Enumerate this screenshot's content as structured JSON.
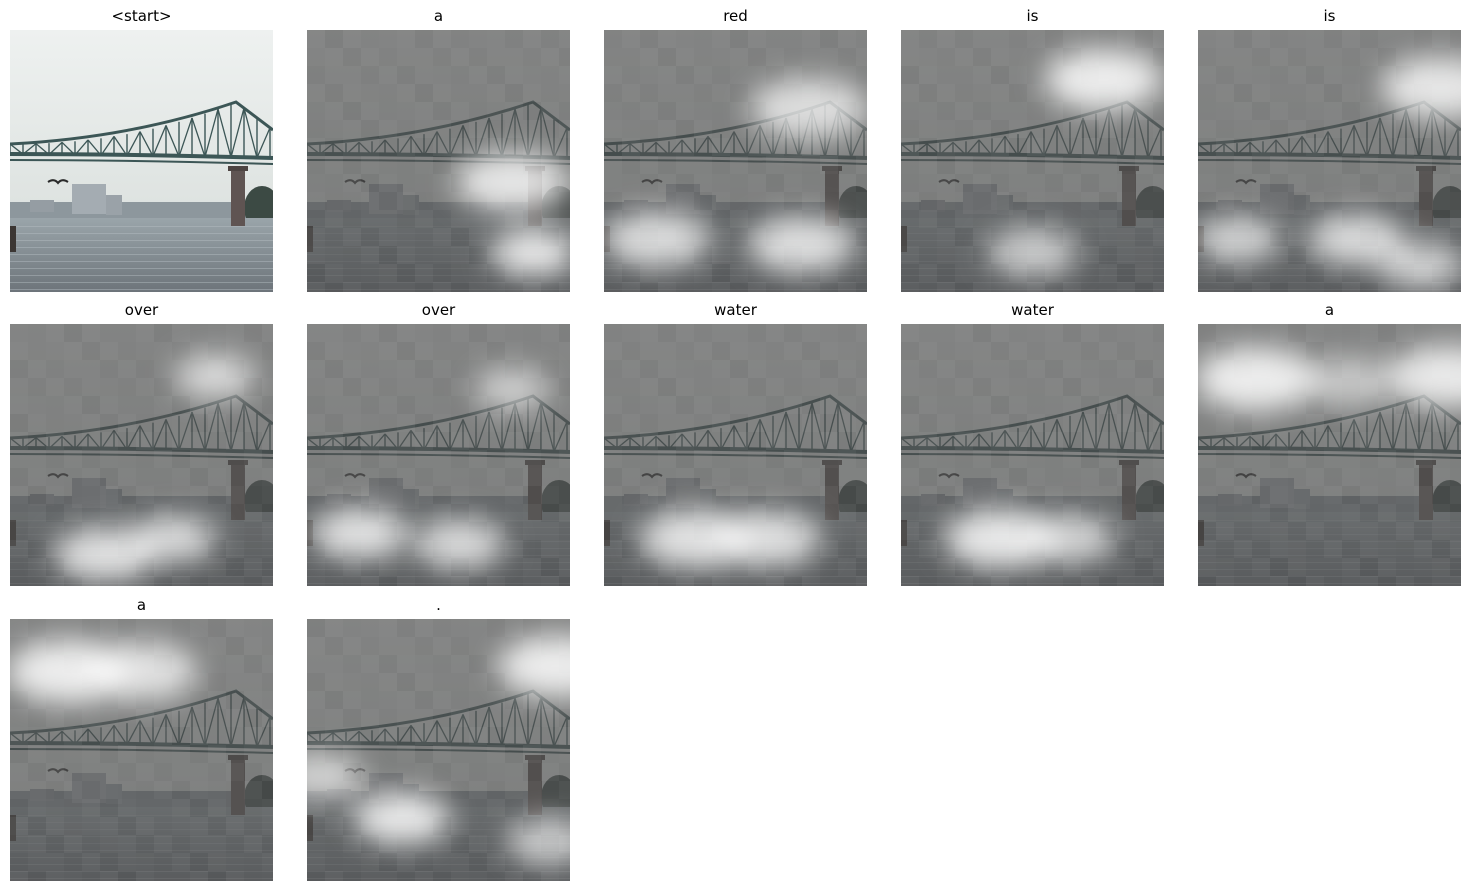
{
  "panels": [
    {
      "word": "<start>",
      "attention": []
    },
    {
      "word": "a",
      "attention": [
        [
          0.78,
          0.58,
          0.9,
          0.55
        ],
        [
          0.86,
          0.85,
          1.0,
          0.3
        ]
      ]
    },
    {
      "word": "red",
      "attention": [
        [
          0.78,
          0.3,
          0.75,
          0.6
        ],
        [
          0.2,
          0.8,
          0.8,
          0.5
        ],
        [
          0.75,
          0.82,
          0.85,
          0.5
        ]
      ]
    },
    {
      "word": "is",
      "attention": [
        [
          0.77,
          0.19,
          1.0,
          0.6
        ],
        [
          0.5,
          0.85,
          0.6,
          0.35
        ]
      ]
    },
    {
      "word": "is",
      "attention": [
        [
          0.92,
          0.22,
          0.9,
          0.6
        ],
        [
          0.15,
          0.8,
          0.7,
          0.3
        ],
        [
          0.6,
          0.8,
          0.8,
          0.4
        ],
        [
          0.85,
          0.9,
          0.7,
          0.3
        ]
      ]
    },
    {
      "word": "over",
      "attention": [
        [
          0.78,
          0.2,
          0.7,
          0.25
        ],
        [
          0.36,
          0.88,
          0.9,
          0.45
        ],
        [
          0.62,
          0.82,
          0.8,
          0.3
        ]
      ]
    },
    {
      "word": "over",
      "attention": [
        [
          0.78,
          0.25,
          0.5,
          0.22
        ],
        [
          0.2,
          0.8,
          0.9,
          0.4
        ],
        [
          0.58,
          0.84,
          0.8,
          0.35
        ]
      ]
    },
    {
      "word": "water",
      "attention": [
        [
          0.35,
          0.82,
          0.9,
          0.55
        ],
        [
          0.62,
          0.82,
          0.85,
          0.5
        ]
      ]
    },
    {
      "word": "water",
      "attention": [
        [
          0.38,
          0.82,
          1.0,
          0.55
        ],
        [
          0.64,
          0.82,
          0.7,
          0.35
        ]
      ]
    },
    {
      "word": "a",
      "attention": [
        [
          0.22,
          0.21,
          1.0,
          0.65
        ],
        [
          0.95,
          0.2,
          0.95,
          0.6
        ],
        [
          0.58,
          0.22,
          0.4,
          0.35
        ]
      ]
    },
    {
      "word": "a",
      "attention": [
        [
          0.22,
          0.2,
          1.0,
          0.65
        ],
        [
          0.5,
          0.2,
          0.8,
          0.55
        ]
      ]
    },
    {
      "word": ".",
      "attention": [
        [
          0.95,
          0.18,
          1.0,
          0.6
        ],
        [
          0.36,
          0.76,
          1.0,
          0.4
        ],
        [
          0.05,
          0.6,
          0.6,
          0.3
        ],
        [
          0.92,
          0.85,
          0.6,
          0.3
        ]
      ]
    }
  ]
}
